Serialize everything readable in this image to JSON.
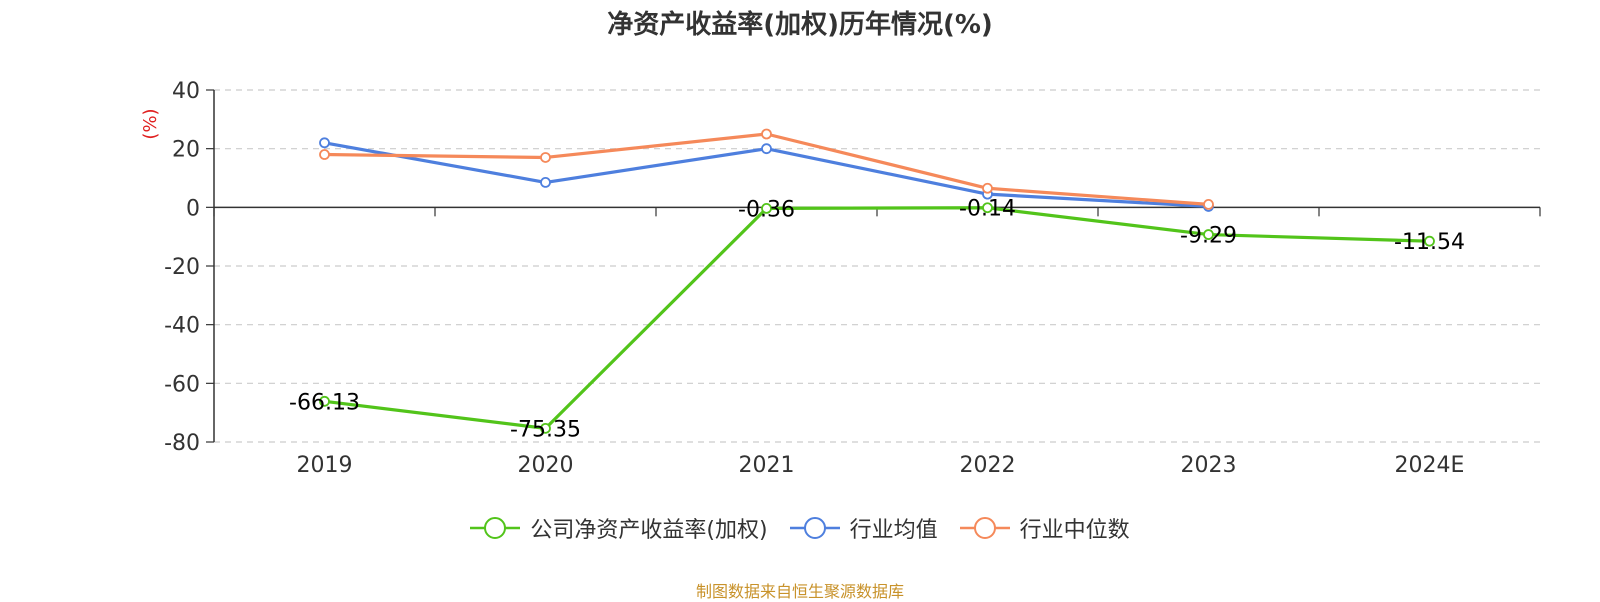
{
  "title": "净资产收益率(加权)历年情况(%)",
  "source_note": "制图数据来自恒生聚源数据库",
  "chart_data": {
    "type": "line",
    "title": "净资产收益率(加权)历年情况(%)",
    "ylabel": "(%)",
    "xlabel": "",
    "categories": [
      "2019",
      "2020",
      "2021",
      "2022",
      "2023",
      "2024E"
    ],
    "ylim": [
      -80,
      40
    ],
    "yticks": [
      40,
      20,
      0,
      -20,
      -40,
      -60,
      -80
    ],
    "grid": true,
    "legend_position": "bottom",
    "series": [
      {
        "name": "公司净资产收益率(加权)",
        "color": "#52c41a",
        "values": [
          -66.13,
          -75.35,
          -0.36,
          -0.14,
          -9.29,
          -11.54
        ],
        "labels": [
          "-66.13",
          "-75.35",
          "-0.36",
          "-0.14",
          "-9.29",
          "-11.54"
        ]
      },
      {
        "name": "行业均值",
        "color": "#4e7fde",
        "values": [
          22.0,
          8.5,
          20.0,
          4.5,
          0.3,
          null
        ]
      },
      {
        "name": "行业中位数",
        "color": "#f5895a",
        "values": [
          18.0,
          17.0,
          25.0,
          6.5,
          1.0,
          null
        ]
      }
    ]
  }
}
